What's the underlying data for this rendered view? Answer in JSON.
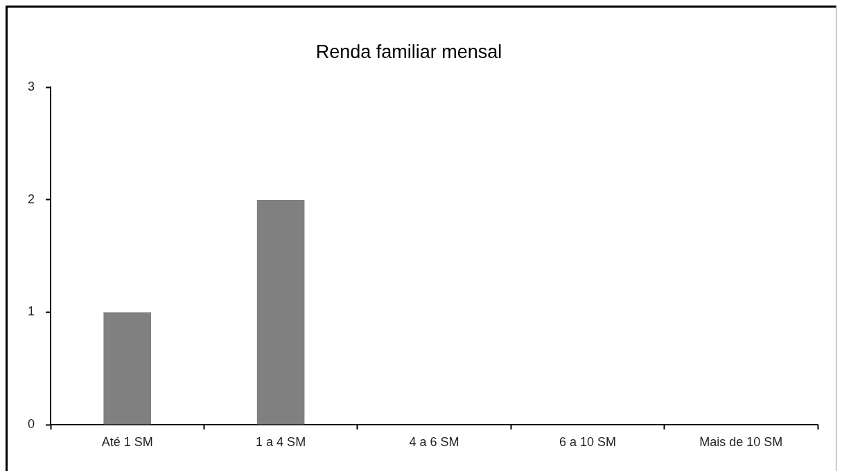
{
  "chart_data": {
    "type": "bar",
    "title": "Renda familiar mensal",
    "categories": [
      "Até 1 SM",
      "1 a 4 SM",
      "4 a 6 SM",
      "6 a 10 SM",
      "Mais de 10 SM"
    ],
    "values": [
      1,
      2,
      0,
      0,
      0
    ],
    "color": "#808080",
    "ylim": [
      0,
      3
    ],
    "yticks": [
      0,
      1,
      2,
      3
    ],
    "grid": false,
    "legend": false
  }
}
